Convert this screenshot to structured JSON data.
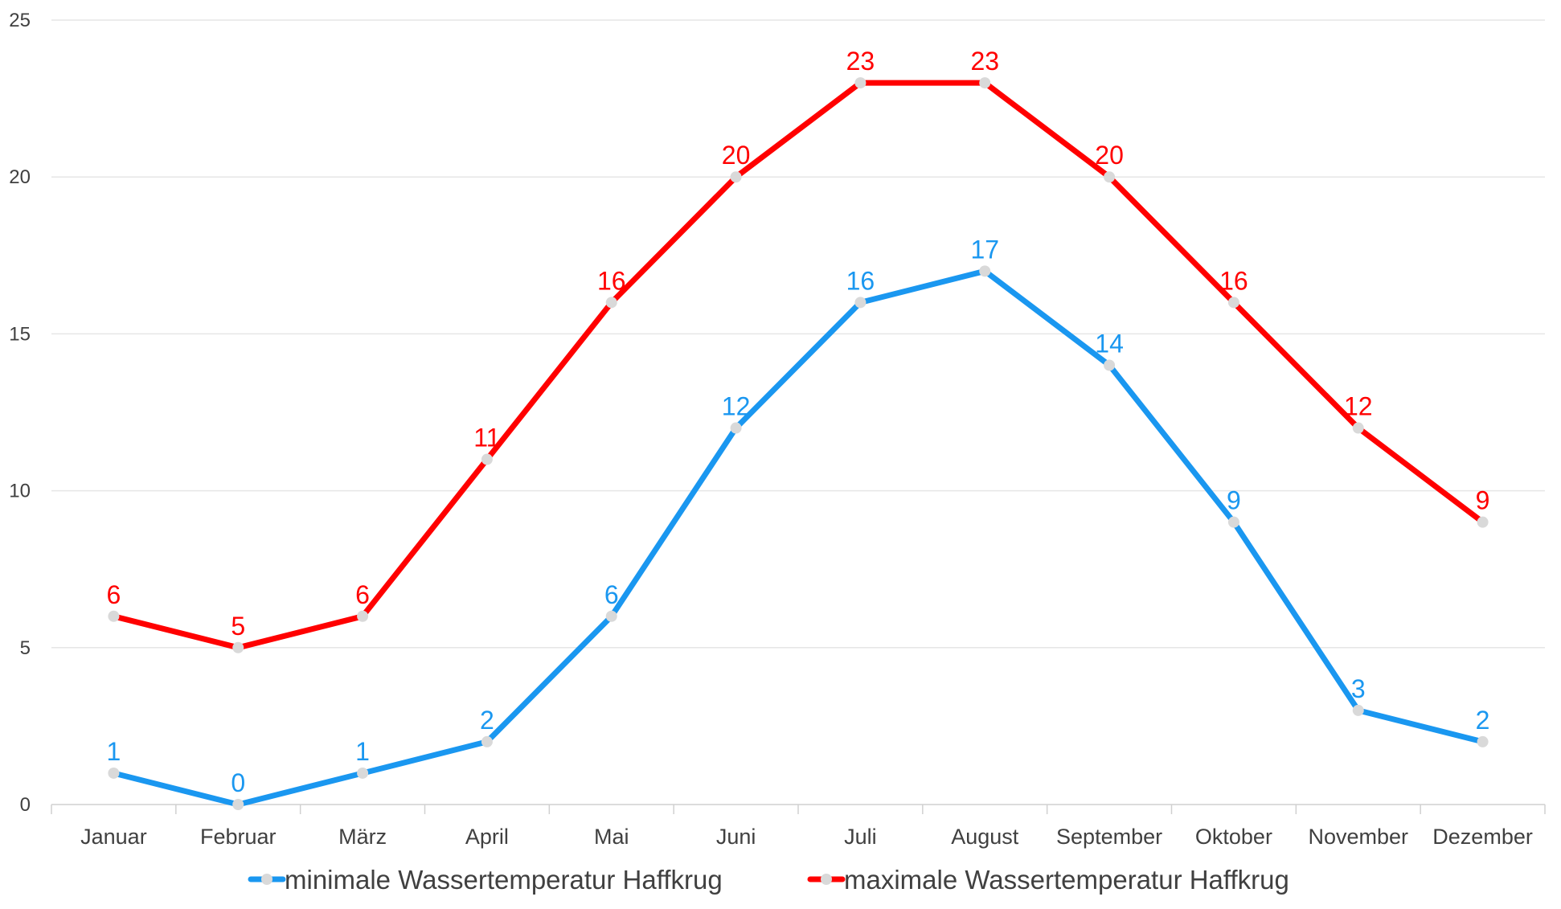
{
  "chart_data": {
    "type": "line",
    "title": "",
    "xlabel": "",
    "ylabel": "",
    "categories": [
      "Januar",
      "Februar",
      "März",
      "April",
      "Mai",
      "Juni",
      "Juli",
      "August",
      "September",
      "Oktober",
      "November",
      "Dezember"
    ],
    "ylim": [
      0,
      25
    ],
    "yticks": [
      "0",
      "5",
      "10",
      "15",
      "20",
      "25"
    ],
    "grid": true,
    "legend_position": "bottom",
    "series": [
      {
        "name": "minimale Wassertemperatur Haffkrug",
        "color": "#1a97f0",
        "values": [
          1,
          0,
          1,
          2,
          6,
          12,
          16,
          17,
          14,
          9,
          3,
          2
        ]
      },
      {
        "name": "maximale Wassertemperatur Haffkrug",
        "color": "#ff0000",
        "values": [
          6,
          5,
          6,
          11,
          16,
          20,
          23,
          23,
          20,
          16,
          12,
          9
        ]
      }
    ],
    "marker_color": "#d9d9d9"
  }
}
